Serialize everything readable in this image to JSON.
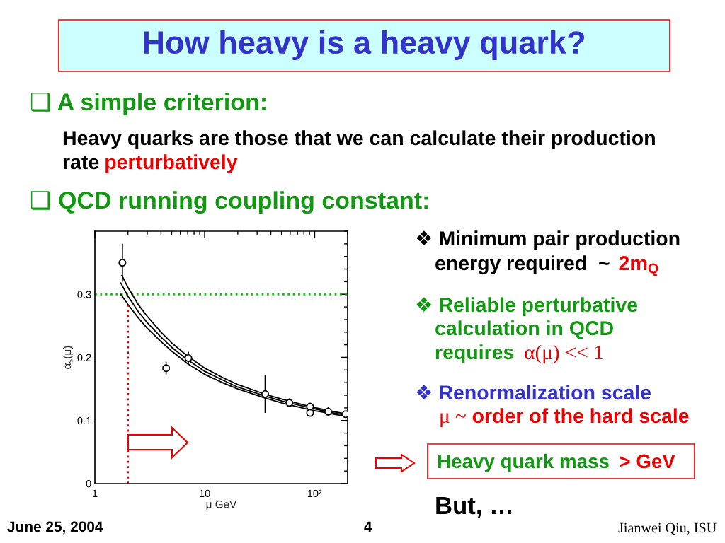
{
  "chart_data": {
    "type": "scatter",
    "title": "How heavy is a heavy quark?",
    "xlabel": "μ GeV",
    "ylabel": "α$_{s}$(μ)",
    "log": "x",
    "xlim": [
      1,
      200
    ],
    "ylim": [
      0,
      0.4
    ],
    "xticks": [
      1,
      10,
      {
        "value": 100,
        "label": "10²"
      }
    ],
    "yticks": [
      0,
      0.1,
      0.2,
      0.3
    ],
    "series": [
      {
        "color": "#000000",
        "marker": "circle",
        "x": [
          1.78,
          4.45,
          7.1,
          35.5,
          59,
          91,
          91,
          133,
          192
        ],
        "values": [
          0.35,
          0.183,
          0.199,
          0.142,
          0.128,
          0.122,
          0.112,
          0.114,
          0.11
        ],
        "errors": [
          0.03,
          0.01,
          0.01,
          0.03,
          0.007,
          0.005,
          0.005,
          0.007,
          0.004
        ]
      },
      {
        "type": "line",
        "color": "#000000",
        "x": [
          1.76,
          2,
          2.5,
          3,
          4,
          5,
          7,
          10,
          15,
          20,
          35,
          50,
          91,
          150,
          200
        ],
        "values": [
          0.33,
          0.311,
          0.283,
          0.265,
          0.24,
          0.223,
          0.202,
          0.183,
          0.167,
          0.157,
          0.142,
          0.134,
          0.122,
          0.114,
          0.11
        ]
      },
      {
        "type": "line",
        "color": "#000000",
        "x": [
          1.72,
          2,
          2.5,
          3,
          4,
          5,
          7,
          10,
          15,
          20,
          35,
          50,
          91,
          150,
          200
        ],
        "values": [
          0.318,
          0.297,
          0.272,
          0.255,
          0.232,
          0.216,
          0.196,
          0.178,
          0.163,
          0.153,
          0.139,
          0.131,
          0.12,
          0.112,
          0.108
        ]
      },
      {
        "type": "line",
        "color": "#000000",
        "x": [
          1.72,
          2,
          2.5,
          3,
          4,
          5,
          7,
          10,
          15,
          20,
          35,
          50,
          91,
          150,
          200
        ],
        "values": [
          0.3,
          0.284,
          0.262,
          0.246,
          0.225,
          0.21,
          0.19,
          0.173,
          0.159,
          0.15,
          0.136,
          0.128,
          0.117,
          0.11,
          0.106
        ]
      },
      {
        "type": "line",
        "color": "#ee0000",
        "line_style": "dotted",
        "x": [
          2,
          2
        ],
        "values": [
          0,
          0.284
        ]
      }
    ],
    "ref_lines": [
      {
        "axis": "y",
        "value": 0.3,
        "color": "#00cc00",
        "line_style": "dotted"
      }
    ],
    "annotations": [
      "❑ A simple criterion:",
      "Heavy quarks are those that we can calculate their production",
      "rate",
      "perturbatively",
      "❑ QCD running coupling constant:",
      "❖ Minimum pair production",
      "energy required  ~",
      "2m$_{Q}$",
      "❖ Reliable perturbative",
      "calculation in QCD",
      "requires",
      "α(μ) << 1",
      "❖ Renormalization scale",
      "μ ~",
      "order of the hard scale",
      "Heavy quark mass",
      "> GeV",
      "But, …",
      "June 25, 2004",
      "4",
      "Jianwei Qiu, ISU"
    ]
  }
}
